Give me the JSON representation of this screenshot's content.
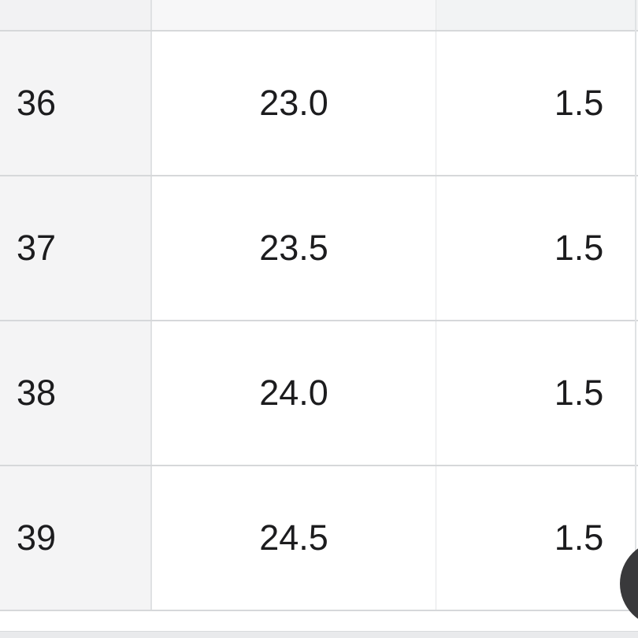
{
  "size_chart": {
    "rows": [
      {
        "size": "36",
        "length": "23.0",
        "tolerance": "1.5"
      },
      {
        "size": "37",
        "length": "23.5",
        "tolerance": "1.5"
      },
      {
        "size": "38",
        "length": "24.0",
        "tolerance": "1.5"
      },
      {
        "size": "39",
        "length": "24.5",
        "tolerance": "1.5"
      }
    ]
  },
  "colors": {
    "row_label_bg": "#f4f4f5",
    "cell_bg": "#ffffff",
    "grid_line": "#d6d8da",
    "text": "#1c1c1e",
    "footer_bar": "#e9eaec",
    "fab": "#39393b"
  }
}
